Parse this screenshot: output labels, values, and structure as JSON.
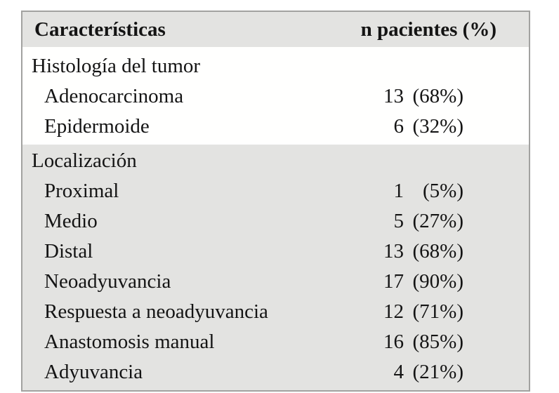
{
  "table": {
    "header": {
      "col1": "Características",
      "col2": "n pacientes (%)"
    },
    "sections": [
      {
        "name": "histologia",
        "rows": [
          {
            "label": "Histología del tumor",
            "indent": false,
            "count": "",
            "pct": ""
          },
          {
            "label": "Adenocarcinoma",
            "indent": true,
            "count": "13",
            "pct": "(68%)"
          },
          {
            "label": "Epidermoide",
            "indent": true,
            "count": "6",
            "pct": "(32%)"
          }
        ]
      },
      {
        "name": "localizacion",
        "rows": [
          {
            "label": "Localización",
            "indent": false,
            "count": "",
            "pct": ""
          },
          {
            "label": "Proximal",
            "indent": true,
            "count": "1",
            "pct": "(5%)"
          },
          {
            "label": "Medio",
            "indent": true,
            "count": "5",
            "pct": "(27%)"
          },
          {
            "label": "Distal",
            "indent": true,
            "count": "13",
            "pct": "(68%)"
          },
          {
            "label": "Neoadyuvancia",
            "indent": true,
            "count": "17",
            "pct": "(90%)"
          },
          {
            "label": "Respuesta a neoadyuvancia",
            "indent": true,
            "count": "12",
            "pct": "(71%)"
          },
          {
            "label": "Anastomosis manual",
            "indent": true,
            "count": "16",
            "pct": "(85%)"
          },
          {
            "label": "Adyuvancia",
            "indent": true,
            "count": "4",
            "pct": "(21%)"
          }
        ]
      }
    ],
    "colors": {
      "header_bg": "#e3e3e1",
      "section_bg": "#e3e3e1",
      "white_bg": "#fffffe",
      "border": "#a2a2a0",
      "text": "#141414"
    }
  }
}
